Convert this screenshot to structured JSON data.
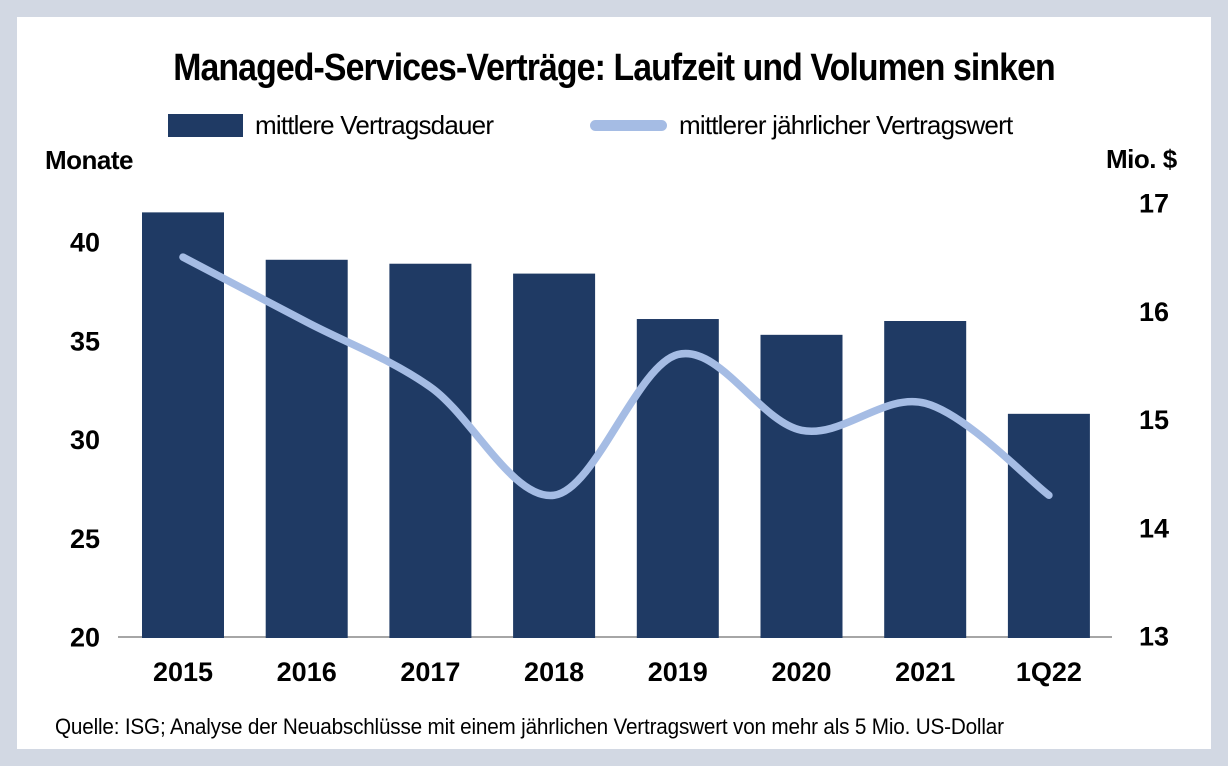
{
  "header": {
    "title": "Managed-Services-Verträge: Laufzeit und Volumen sinken"
  },
  "legend": {
    "position": "top",
    "items": [
      {
        "label": "mittlere Vertragsdauer",
        "swatch": "bar"
      },
      {
        "label": "mittlerer jährlicher Vertragswert",
        "swatch": "line"
      }
    ]
  },
  "axes": {
    "left_unit": "Monate",
    "right_unit": "Mio. $"
  },
  "source": {
    "text": "Quelle: ISG; Analyse der Neuabschlüsse mit einem jährlichen Vertragswert von mehr als 5 Mio. US-Dollar"
  },
  "colors": {
    "bar": "#1f3a64",
    "line": "#a5bce4",
    "page_background": "#d2d8e3",
    "card_background": "#ffffff",
    "axis_line": "#a6a6a6",
    "text": "#000000"
  },
  "chart_data": {
    "type": "bar",
    "title": "Managed-Services-Verträge: Laufzeit und Volumen sinken",
    "categories": [
      "2015",
      "2016",
      "2017",
      "2018",
      "2019",
      "2020",
      "2021",
      "1Q22"
    ],
    "series": [
      {
        "name": "mittlere Vertragsdauer",
        "type": "bar",
        "axis": "left",
        "unit": "Monate",
        "values": [
          41.5,
          39.1,
          38.9,
          38.4,
          36.1,
          35.3,
          36.0,
          31.3
        ]
      },
      {
        "name": "mittlerer jährlicher Vertragswert",
        "type": "line",
        "axis": "right",
        "unit": "Mio. $",
        "values": [
          16.5,
          15.9,
          15.3,
          14.3,
          15.6,
          14.9,
          15.15,
          14.3
        ]
      }
    ],
    "left_axis": {
      "label": "Monate",
      "ticks": [
        20,
        25,
        30,
        35,
        40
      ],
      "range": [
        20,
        42.1
      ]
    },
    "right_axis": {
      "label": "Mio. $",
      "ticks": [
        13,
        14,
        15,
        16,
        17
      ],
      "range": [
        13,
        17.2
      ]
    },
    "grid": false,
    "legend_position": "top"
  }
}
